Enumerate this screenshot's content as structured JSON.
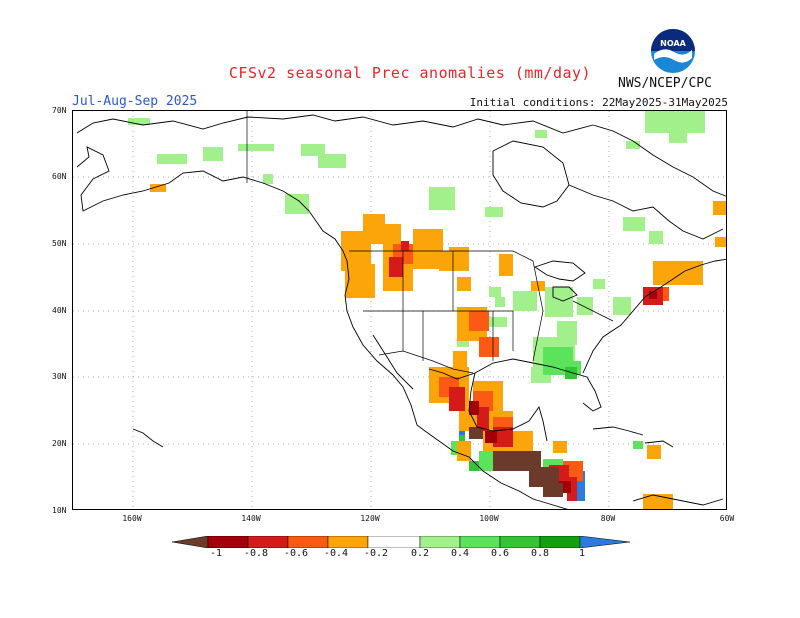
{
  "header": {
    "title": "CFSv2 seasonal Prec anomalies (mm/day)",
    "season": "Jul-Aug-Sep 2025",
    "initial_conditions": "Initial conditions: 22May2025-31May2025",
    "org": "NWS/NCEP/CPC",
    "logo_text": "NOAA"
  },
  "lat_labels": [
    "70N",
    "60N",
    "50N",
    "40N",
    "30N",
    "20N",
    "10N"
  ],
  "lon_labels": [
    "160W",
    "140W",
    "120W",
    "100W",
    "80W",
    "60W"
  ],
  "colorbar": {
    "labels": [
      "-1",
      "-0.8",
      "-0.6",
      "-0.4",
      "-0.2",
      "0.2",
      "0.4",
      "0.6",
      "0.8",
      "1"
    ],
    "colors": [
      "#6b3a2a",
      "#a3000a",
      "#d51a1a",
      "#fb5a14",
      "#fca50b",
      "#ffffff",
      "#a2f08c",
      "#5ce35c",
      "#34c434",
      "#10a010",
      "#2a7bde"
    ]
  }
}
